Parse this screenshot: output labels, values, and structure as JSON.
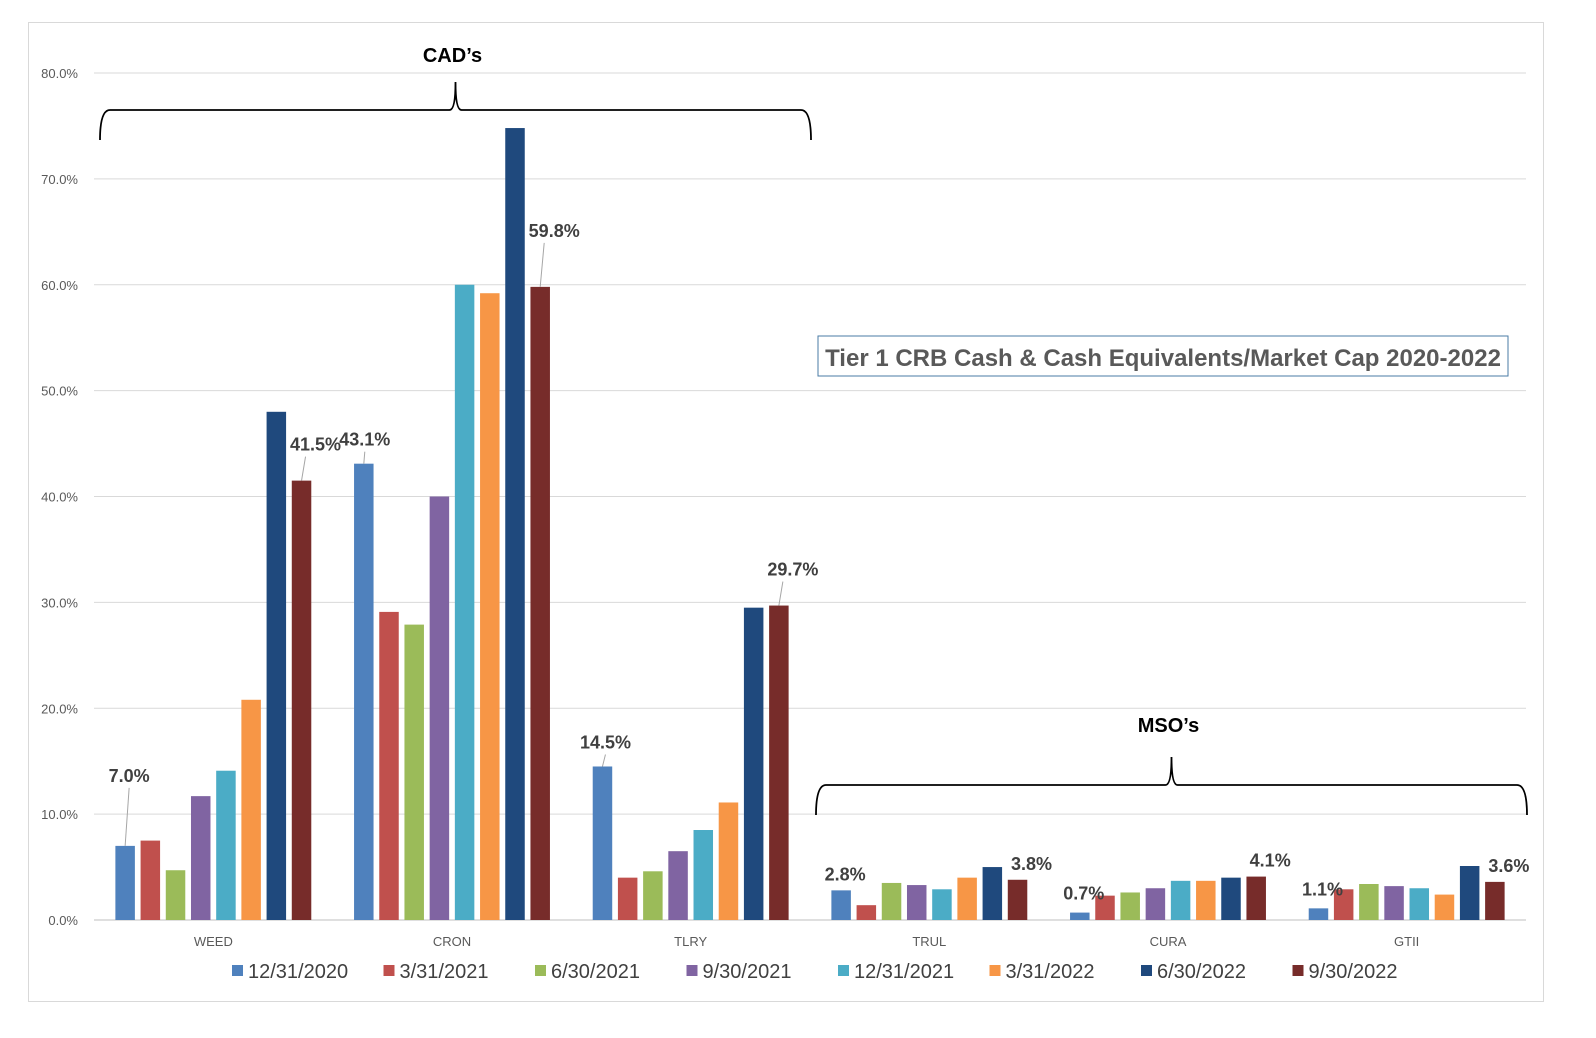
{
  "chart_data": {
    "type": "bar",
    "title": "Tier 1 CRB Cash & Cash Equivalents/Market Cap 2020-2022",
    "categories": [
      "WEED",
      "CRON",
      "TLRY",
      "TRUL",
      "CURA",
      "GTII"
    ],
    "ylim": [
      0,
      80
    ],
    "yticks": [
      "0.0%",
      "10.0%",
      "20.0%",
      "30.0%",
      "40.0%",
      "50.0%",
      "60.0%",
      "70.0%",
      "80.0%"
    ],
    "grid": true,
    "legend_position": "bottom",
    "series": [
      {
        "name": "12/31/2020",
        "color": "#4f81bd",
        "values": [
          7.0,
          43.1,
          14.5,
          2.8,
          0.7,
          1.1
        ]
      },
      {
        "name": "3/31/2021",
        "color": "#c0504d",
        "values": [
          7.5,
          29.1,
          4.0,
          1.4,
          2.3,
          2.9
        ]
      },
      {
        "name": "6/30/2021",
        "color": "#9bbb59",
        "values": [
          4.7,
          27.9,
          4.6,
          3.5,
          2.6,
          3.4
        ]
      },
      {
        "name": "9/30/2021",
        "color": "#8064a2",
        "values": [
          11.7,
          40.0,
          6.5,
          3.3,
          3.0,
          3.2
        ]
      },
      {
        "name": "12/31/2021",
        "color": "#4bacc6",
        "values": [
          14.1,
          60.0,
          8.5,
          2.9,
          3.7,
          3.0
        ]
      },
      {
        "name": "3/31/2022",
        "color": "#f79646",
        "values": [
          20.8,
          59.2,
          11.1,
          4.0,
          3.7,
          2.4
        ]
      },
      {
        "name": "6/30/2022",
        "color": "#1f497d",
        "values": [
          48.0,
          74.8,
          29.5,
          5.0,
          4.0,
          5.1
        ]
      },
      {
        "name": "9/30/2022",
        "color": "#772c2a",
        "values": [
          41.5,
          59.8,
          29.7,
          3.8,
          4.1,
          3.6
        ]
      }
    ],
    "data_labels": [
      {
        "category": "WEED",
        "series": "12/31/2020",
        "text": "7.0%"
      },
      {
        "category": "WEED",
        "series": "9/30/2022",
        "text": "41.5%"
      },
      {
        "category": "CRON",
        "series": "12/31/2020",
        "text": "43.1%"
      },
      {
        "category": "CRON",
        "series": "9/30/2022",
        "text": "59.8%"
      },
      {
        "category": "TLRY",
        "series": "12/31/2020",
        "text": "14.5%"
      },
      {
        "category": "TLRY",
        "series": "9/30/2022",
        "text": "29.7%"
      },
      {
        "category": "TRUL",
        "series": "12/31/2020",
        "text": "2.8%"
      },
      {
        "category": "TRUL",
        "series": "9/30/2022",
        "text": "3.8%"
      },
      {
        "category": "CURA",
        "series": "12/31/2020",
        "text": "0.7%"
      },
      {
        "category": "CURA",
        "series": "9/30/2022",
        "text": "4.1%"
      },
      {
        "category": "GTII",
        "series": "12/31/2020",
        "text": "1.1%"
      },
      {
        "category": "GTII",
        "series": "9/30/2022",
        "text": "3.6%"
      }
    ],
    "annotations": [
      {
        "text": "CAD’s",
        "categories": [
          "WEED",
          "CRON",
          "TLRY"
        ]
      },
      {
        "text": "MSO’s",
        "categories": [
          "TRUL",
          "CURA",
          "GTII"
        ]
      }
    ]
  }
}
